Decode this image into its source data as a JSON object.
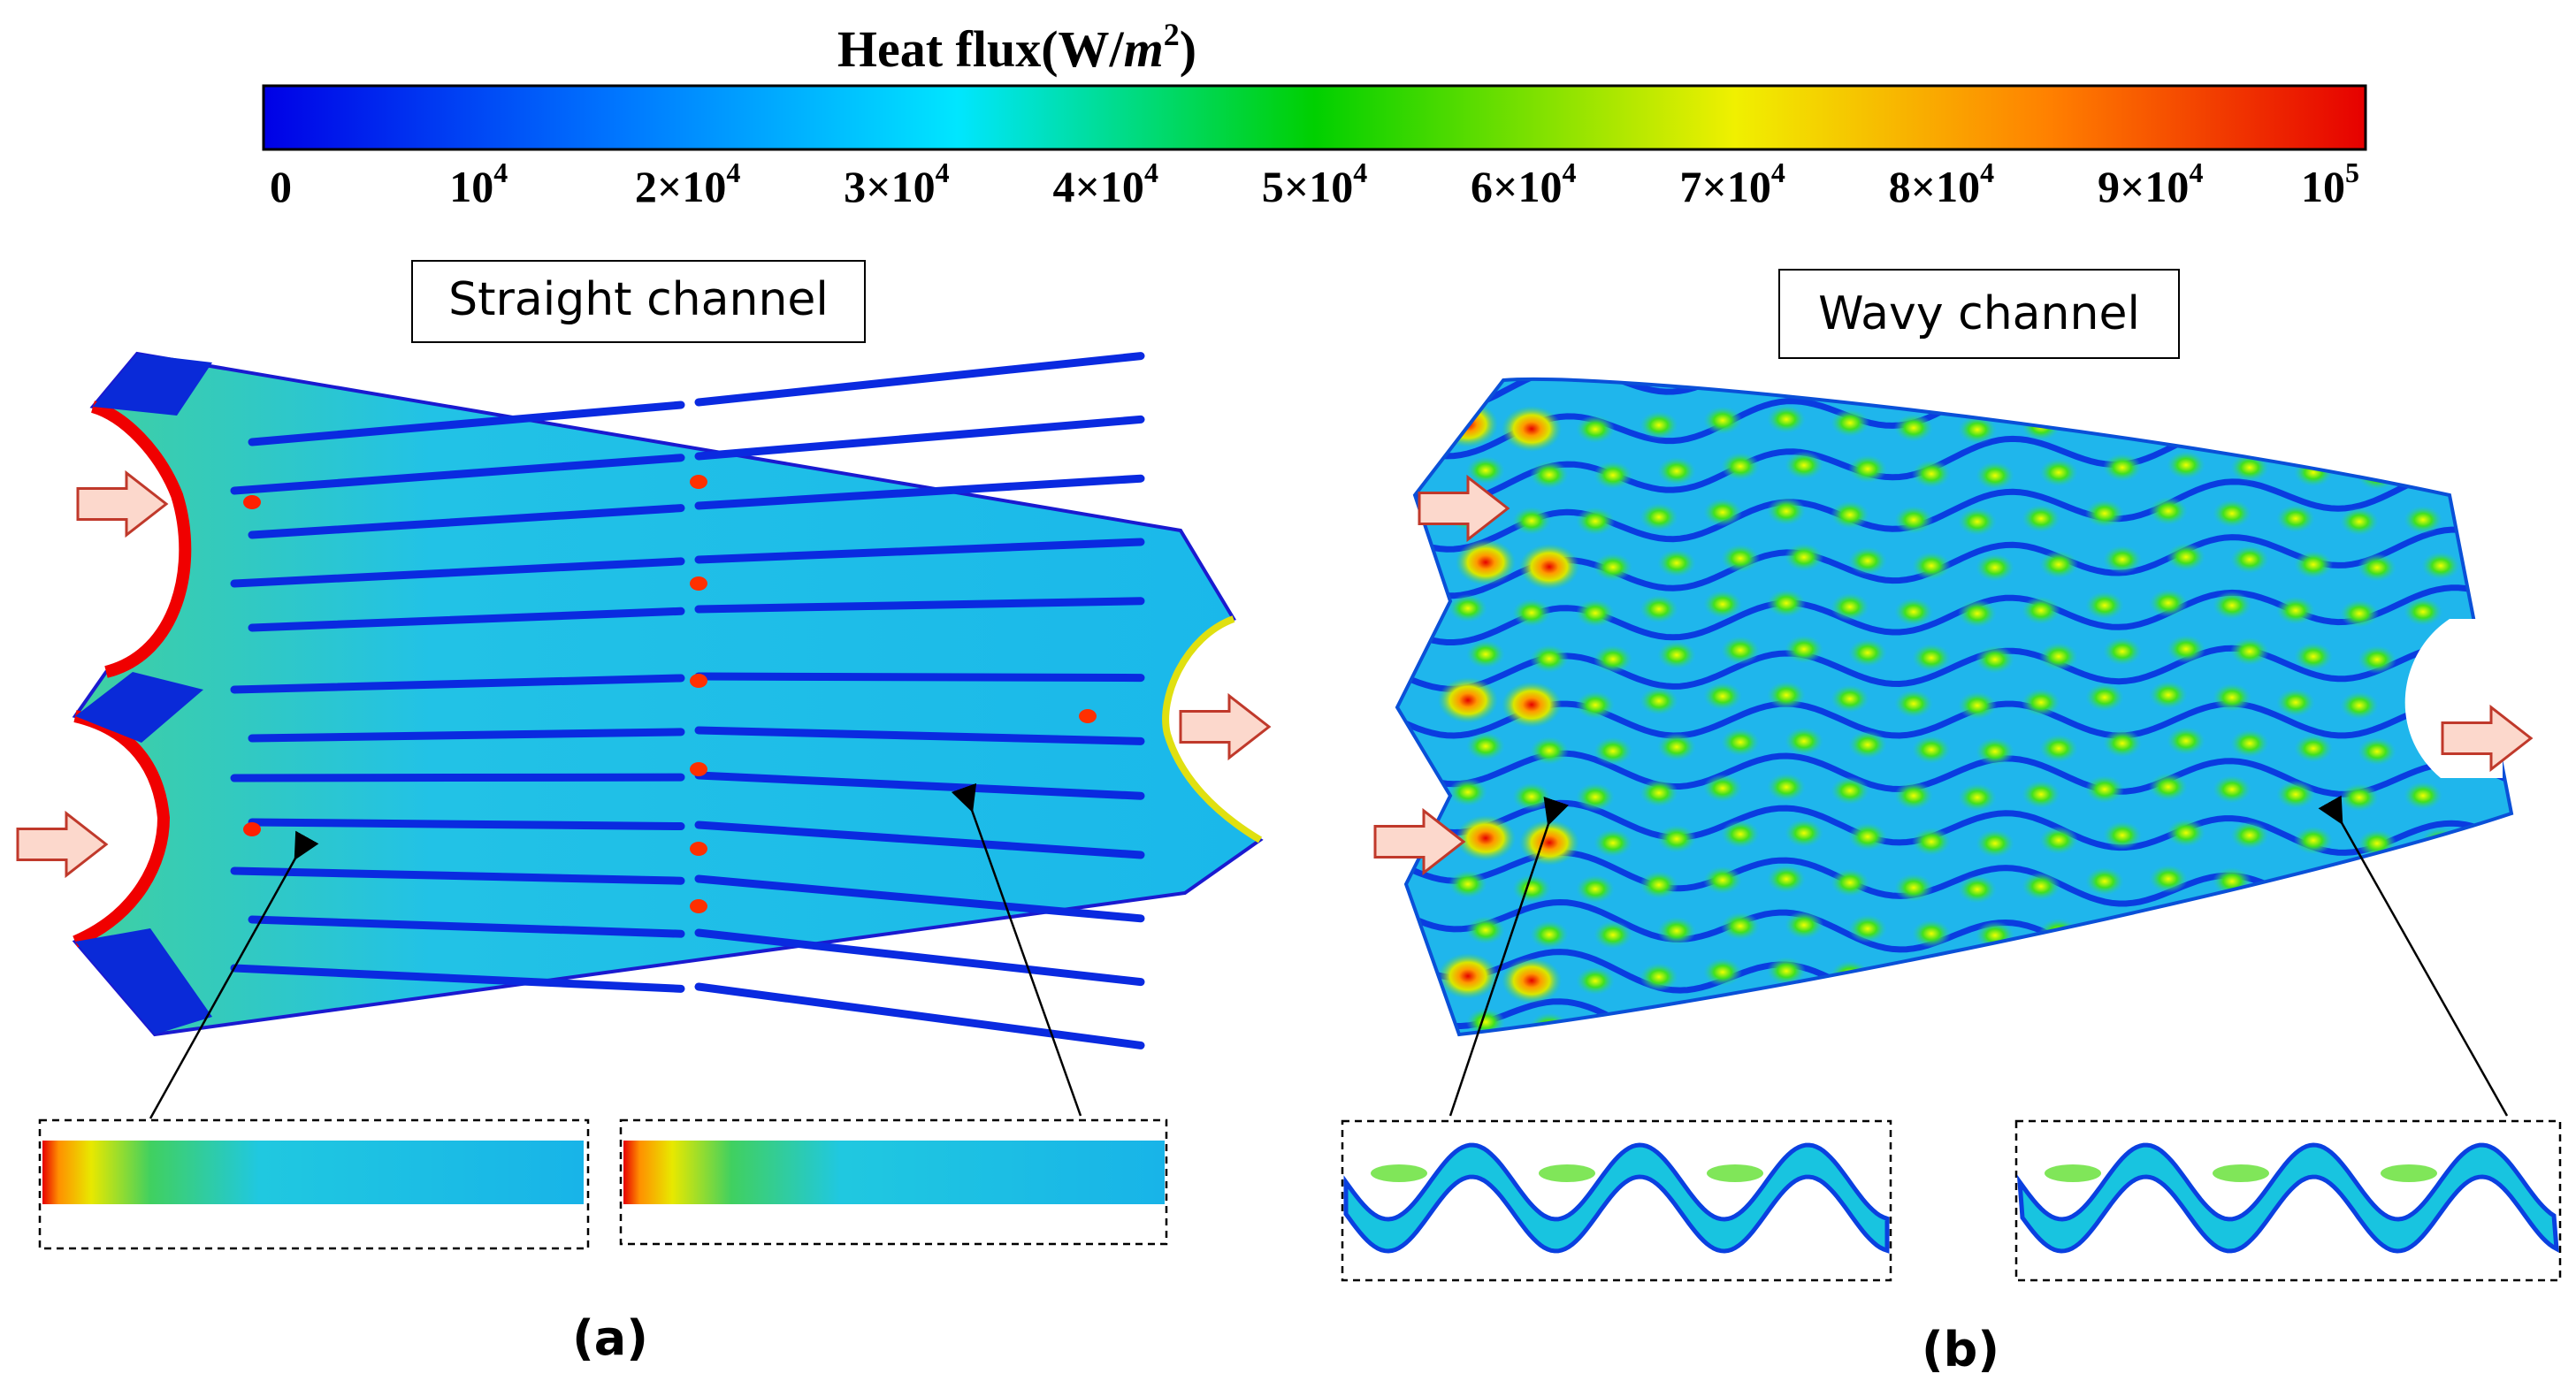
{
  "colorbar": {
    "title_main": "Heat flux(W/",
    "title_unit_var": "m",
    "title_unit_exp": "2",
    "title_close": ")",
    "ticks": [
      {
        "base": "0",
        "exp": ""
      },
      {
        "base": "10",
        "exp": "4"
      },
      {
        "base": "2×10",
        "exp": "4"
      },
      {
        "base": "3×10",
        "exp": "4"
      },
      {
        "base": "4×10",
        "exp": "4"
      },
      {
        "base": "5×10",
        "exp": "4"
      },
      {
        "base": "6×10",
        "exp": "4"
      },
      {
        "base": "7×10",
        "exp": "4"
      },
      {
        "base": "8×10",
        "exp": "4"
      },
      {
        "base": "9×10",
        "exp": "4"
      },
      {
        "base": "10",
        "exp": "5"
      }
    ],
    "colors": [
      "#0000e6",
      "#0077ff",
      "#00e6ff",
      "#00d000",
      "#f0f000",
      "#ff8000",
      "#e60000"
    ]
  },
  "panels": {
    "a": {
      "title": "Straight channel",
      "label": "(a)"
    },
    "b": {
      "title": "Wavy channel",
      "label": "(b)"
    }
  },
  "flow_colors": {
    "arrow_fill": "#fcd8cc",
    "arrow_stroke": "#c0392b",
    "plate_base": "#22c2e6"
  }
}
